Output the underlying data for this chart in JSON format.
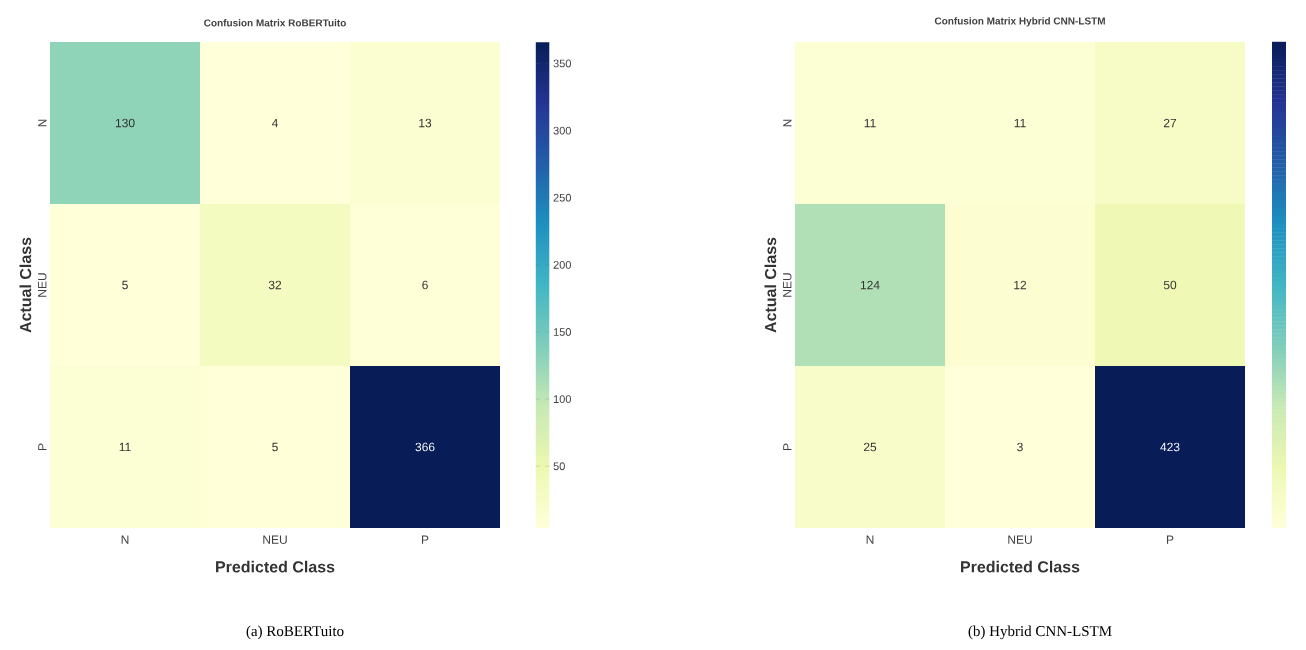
{
  "chart_data": [
    {
      "type": "heatmap",
      "title": "Confusion Matrix RoBERTuito",
      "xlabel": "Predicted Class",
      "ylabel": "Actual Class",
      "categories": [
        "N",
        "NEU",
        "P"
      ],
      "y_categories": [
        "N",
        "NEU",
        "P"
      ],
      "cells": [
        [
          130,
          4,
          13
        ],
        [
          5,
          32,
          6
        ],
        [
          11,
          5,
          366
        ]
      ],
      "clim": [
        4,
        366
      ],
      "cticks": [
        50,
        100,
        150,
        200,
        250,
        300,
        350
      ],
      "data_labels": true,
      "annotations": [
        "(a)  RoBERTuito"
      ]
    },
    {
      "type": "heatmap",
      "title": "Confusion Matrix Hybrid CNN-LSTM",
      "xlabel": "Predicted Class",
      "ylabel": "Actual Class",
      "categories": [
        "N",
        "NEU",
        "P"
      ],
      "y_categories": [
        "N",
        "NEU",
        "P"
      ],
      "cells": [
        [
          11,
          11,
          27
        ],
        [
          124,
          12,
          50
        ],
        [
          25,
          3,
          423
        ]
      ],
      "data_labels": true,
      "annotations": [
        "(b)  Hybrid CNN-LSTM"
      ]
    }
  ]
}
